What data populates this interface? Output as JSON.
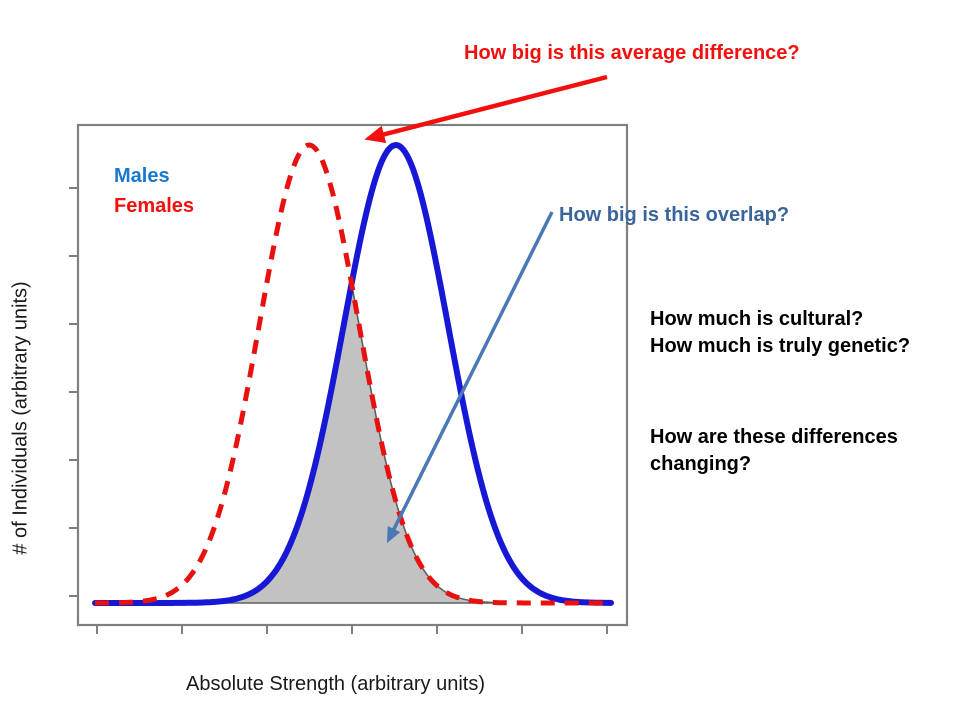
{
  "page": {
    "background": "#ffffff"
  },
  "chart": {
    "xlabel": "Absolute Strength (arbitrary units)",
    "ylabel": "# of Individuals (arbitrary units)",
    "x_tick_count": 7,
    "y_tick_count": 7,
    "frame_color": "#7f7f7f"
  },
  "chart_data": {
    "type": "line",
    "title": "",
    "xlabel": "Absolute Strength (arbitrary units)",
    "ylabel": "# of Individuals (arbitrary units)",
    "x_range": [
      0,
      10
    ],
    "y_range": [
      0,
      1.08
    ],
    "grid": false,
    "tick_labels": "none (arbitrary units)",
    "legend_position": "top-left inside plot",
    "series": [
      {
        "name": "Males",
        "color": "#1717d6",
        "line_style": "solid",
        "distribution": "normal",
        "mean": 5.79,
        "sd": 0.95,
        "peak": 1.0,
        "x_samples": [
          0,
          1,
          2,
          3,
          4,
          5,
          6,
          7,
          8,
          9,
          10
        ],
        "values": [
          0,
          0,
          0.0003,
          0.013,
          0.17,
          0.708,
          0.976,
          0.444,
          0.067,
          0.003,
          0
        ]
      },
      {
        "name": "Females",
        "color": "#e8110e",
        "line_style": "dashed",
        "distribution": "normal",
        "mean": 4.21,
        "sd": 0.91,
        "peak": 1.0,
        "x_samples": [
          0,
          1,
          2,
          3,
          4,
          5,
          6,
          7,
          8,
          9,
          10
        ],
        "values": [
          0,
          0.002,
          0.052,
          0.413,
          0.974,
          0.686,
          0.145,
          0.009,
          0,
          0,
          0
        ]
      }
    ],
    "overlap": {
      "fill": "#c2c2c2",
      "edge": "#5f5f5f",
      "meaning": "shaded region = min(Males, Females), the overlap of the two distributions"
    }
  },
  "legend": {
    "males": "Males",
    "males_color": "#1878ce",
    "females": "Females",
    "females_color": "#f2100d"
  },
  "annotations": {
    "avg_difference": {
      "text": "How big is this average difference?",
      "color": "#f2100d"
    },
    "overlap": {
      "text": "How big is this overlap?",
      "color": "#3a659c"
    },
    "cultural": {
      "text": "How much is cultural?\nHow much is truly genetic?",
      "color": "#000000"
    },
    "changing": {
      "text": "How are these differences\nchanging?",
      "color": "#000000"
    }
  },
  "arrows": {
    "red_arrow_color": "#f2100d",
    "blue_arrow_color": "#4a78b4"
  }
}
